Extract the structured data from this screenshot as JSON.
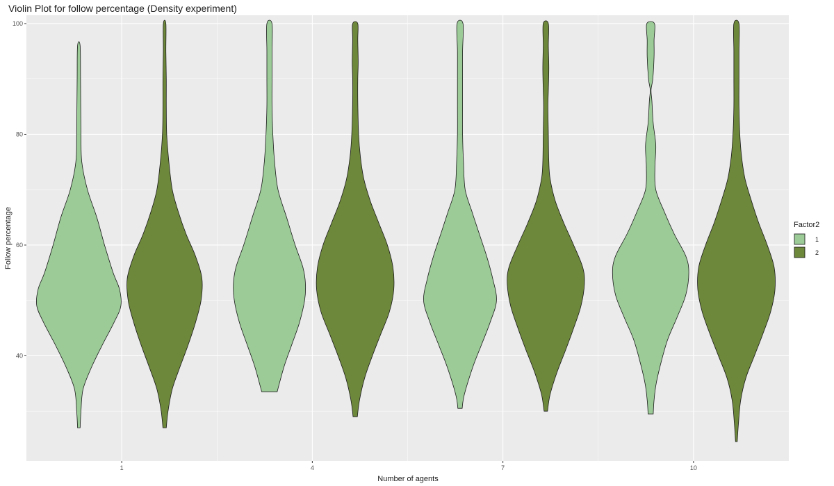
{
  "chart_data": {
    "type": "violin",
    "title": "Violin Plot for follow percentage (Density experiment)",
    "xlabel": "Number of agents",
    "ylabel": "Follow percentage",
    "x_ticks": [
      "1",
      "4",
      "7",
      "10"
    ],
    "y_ticks": [
      40,
      60,
      80,
      100
    ],
    "ylim": [
      21,
      101.5
    ],
    "grid": true,
    "legend": {
      "title": "Factor2",
      "placement": "right",
      "entries": [
        {
          "label": "1",
          "color": "#9ccb98"
        },
        {
          "label": "2",
          "color": "#6e883b"
        }
      ]
    },
    "colors": {
      "panel_bg": "#ebebeb",
      "grid": "#ffffff",
      "outline": "#1a1a1a"
    },
    "series": [
      {
        "group": "1",
        "factor": "1",
        "profile": [
          [
            27,
            0.03
          ],
          [
            30,
            0.05
          ],
          [
            34,
            0.1
          ],
          [
            38,
            0.3
          ],
          [
            42,
            0.55
          ],
          [
            46,
            0.82
          ],
          [
            49,
            0.98
          ],
          [
            52,
            0.95
          ],
          [
            55,
            0.8
          ],
          [
            60,
            0.6
          ],
          [
            65,
            0.42
          ],
          [
            70,
            0.2
          ],
          [
            75,
            0.07
          ],
          [
            80,
            0.05
          ],
          [
            90,
            0.04
          ],
          [
            96,
            0.03
          ]
        ]
      },
      {
        "group": "1",
        "factor": "2",
        "profile": [
          [
            27,
            0.04
          ],
          [
            30,
            0.08
          ],
          [
            34,
            0.18
          ],
          [
            38,
            0.36
          ],
          [
            42,
            0.55
          ],
          [
            46,
            0.72
          ],
          [
            50,
            0.85
          ],
          [
            54,
            0.87
          ],
          [
            58,
            0.72
          ],
          [
            62,
            0.5
          ],
          [
            66,
            0.32
          ],
          [
            70,
            0.18
          ],
          [
            75,
            0.1
          ],
          [
            80,
            0.05
          ],
          [
            85,
            0.04
          ],
          [
            90,
            0.04
          ],
          [
            95,
            0.03
          ],
          [
            100,
            0.03
          ]
        ]
      },
      {
        "group": "4",
        "factor": "1",
        "profile": [
          [
            33.5,
            0.18
          ],
          [
            38,
            0.34
          ],
          [
            42,
            0.52
          ],
          [
            46,
            0.7
          ],
          [
            50,
            0.82
          ],
          [
            53,
            0.84
          ],
          [
            56,
            0.78
          ],
          [
            60,
            0.6
          ],
          [
            65,
            0.4
          ],
          [
            70,
            0.2
          ],
          [
            75,
            0.12
          ],
          [
            80,
            0.08
          ],
          [
            85,
            0.06
          ],
          [
            90,
            0.06
          ],
          [
            95,
            0.06
          ],
          [
            100,
            0.06
          ]
        ]
      },
      {
        "group": "4",
        "factor": "2",
        "profile": [
          [
            29,
            0.05
          ],
          [
            32,
            0.1
          ],
          [
            36,
            0.22
          ],
          [
            40,
            0.4
          ],
          [
            44,
            0.6
          ],
          [
            48,
            0.8
          ],
          [
            52,
            0.9
          ],
          [
            56,
            0.88
          ],
          [
            60,
            0.75
          ],
          [
            64,
            0.55
          ],
          [
            68,
            0.35
          ],
          [
            72,
            0.2
          ],
          [
            76,
            0.12
          ],
          [
            80,
            0.08
          ],
          [
            86,
            0.06
          ],
          [
            90,
            0.06
          ],
          [
            93,
            0.07
          ],
          [
            97,
            0.06
          ],
          [
            100,
            0.06
          ]
        ]
      },
      {
        "group": "7",
        "factor": "1",
        "profile": [
          [
            30.5,
            0.05
          ],
          [
            33,
            0.1
          ],
          [
            38,
            0.3
          ],
          [
            42,
            0.5
          ],
          [
            46,
            0.7
          ],
          [
            50,
            0.85
          ],
          [
            54,
            0.76
          ],
          [
            58,
            0.62
          ],
          [
            62,
            0.45
          ],
          [
            66,
            0.28
          ],
          [
            70,
            0.12
          ],
          [
            75,
            0.08
          ],
          [
            80,
            0.06
          ],
          [
            85,
            0.06
          ],
          [
            90,
            0.06
          ],
          [
            95,
            0.06
          ],
          [
            100,
            0.07
          ]
        ]
      },
      {
        "group": "7",
        "factor": "2",
        "profile": [
          [
            30,
            0.04
          ],
          [
            33,
            0.1
          ],
          [
            37,
            0.26
          ],
          [
            41,
            0.46
          ],
          [
            45,
            0.65
          ],
          [
            49,
            0.82
          ],
          [
            53,
            0.9
          ],
          [
            56,
            0.86
          ],
          [
            60,
            0.65
          ],
          [
            64,
            0.42
          ],
          [
            68,
            0.22
          ],
          [
            72,
            0.1
          ],
          [
            75,
            0.07
          ],
          [
            80,
            0.06
          ],
          [
            85,
            0.05
          ],
          [
            88,
            0.06
          ],
          [
            92,
            0.07
          ],
          [
            96,
            0.06
          ],
          [
            100,
            0.06
          ]
        ]
      },
      {
        "group": "10",
        "factor": "1",
        "profile": [
          [
            29.5,
            0.06
          ],
          [
            32,
            0.08
          ],
          [
            35,
            0.13
          ],
          [
            39,
            0.25
          ],
          [
            43,
            0.4
          ],
          [
            47,
            0.62
          ],
          [
            51,
            0.82
          ],
          [
            55,
            0.89
          ],
          [
            58,
            0.82
          ],
          [
            62,
            0.55
          ],
          [
            66,
            0.32
          ],
          [
            70,
            0.12
          ],
          [
            74,
            0.1
          ],
          [
            78,
            0.12
          ],
          [
            82,
            0.06
          ],
          [
            86,
            0.03
          ],
          [
            88,
            0.01
          ],
          [
            90,
            0.05
          ],
          [
            94,
            0.08
          ],
          [
            97,
            0.08
          ],
          [
            100,
            0.09
          ]
        ]
      },
      {
        "group": "10",
        "factor": "2",
        "profile": [
          [
            24.5,
            0.02
          ],
          [
            28,
            0.05
          ],
          [
            32,
            0.1
          ],
          [
            36,
            0.22
          ],
          [
            40,
            0.42
          ],
          [
            44,
            0.62
          ],
          [
            48,
            0.8
          ],
          [
            52,
            0.9
          ],
          [
            56,
            0.88
          ],
          [
            60,
            0.72
          ],
          [
            64,
            0.52
          ],
          [
            68,
            0.35
          ],
          [
            72,
            0.2
          ],
          [
            76,
            0.12
          ],
          [
            80,
            0.08
          ],
          [
            85,
            0.06
          ],
          [
            90,
            0.06
          ],
          [
            95,
            0.06
          ],
          [
            100,
            0.06
          ]
        ]
      }
    ]
  }
}
